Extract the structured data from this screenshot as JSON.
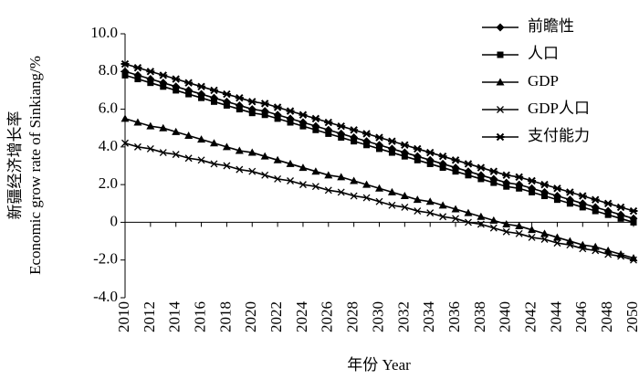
{
  "chart_data": {
    "type": "line",
    "ylabel": [
      "新疆经济增长率",
      "Economic grow rate of  Sinkiang/%"
    ],
    "xlabel": "年份 Year",
    "x": [
      2010,
      2011,
      2012,
      2013,
      2014,
      2015,
      2016,
      2017,
      2018,
      2019,
      2020,
      2021,
      2022,
      2023,
      2024,
      2025,
      2026,
      2027,
      2028,
      2029,
      2030,
      2031,
      2032,
      2033,
      2034,
      2035,
      2036,
      2037,
      2038,
      2039,
      2040,
      2041,
      2042,
      2043,
      2044,
      2045,
      2046,
      2047,
      2048,
      2049,
      2050
    ],
    "xlim": [
      2010,
      2050
    ],
    "xticks": [
      2010,
      2012,
      2014,
      2016,
      2018,
      2020,
      2022,
      2024,
      2026,
      2028,
      2030,
      2032,
      2034,
      2036,
      2038,
      2040,
      2042,
      2044,
      2046,
      2048,
      2050
    ],
    "ylim": [
      -4,
      10
    ],
    "yticks": [
      {
        "value": -4,
        "label": "-4.0"
      },
      {
        "value": -2,
        "label": "-2.0"
      },
      0,
      {
        "value": 2,
        "label": "2.0"
      },
      {
        "value": 4,
        "label": "4.0"
      },
      {
        "value": 6,
        "label": "6.0"
      },
      {
        "value": 8,
        "label": "8.0"
      },
      {
        "value": 10,
        "label": "10.0"
      }
    ],
    "legend": "top-right",
    "series": [
      {
        "name": "前瞻性",
        "color": "#000000",
        "marker": "diamond",
        "values": [
          8.0,
          7.8,
          7.6,
          7.4,
          7.2,
          7.0,
          6.8,
          6.6,
          6.4,
          6.2,
          6.0,
          5.9,
          5.7,
          5.5,
          5.3,
          5.1,
          4.9,
          4.7,
          4.5,
          4.3,
          4.1,
          3.9,
          3.7,
          3.5,
          3.3,
          3.1,
          2.9,
          2.7,
          2.5,
          2.3,
          2.1,
          2.0,
          1.8,
          1.6,
          1.4,
          1.2,
          1.0,
          0.8,
          0.6,
          0.4,
          0.2
        ]
      },
      {
        "name": "人口",
        "color": "#000000",
        "marker": "square",
        "values": [
          7.8,
          7.6,
          7.4,
          7.2,
          7.0,
          6.8,
          6.6,
          6.4,
          6.2,
          6.0,
          5.8,
          5.7,
          5.5,
          5.3,
          5.1,
          4.9,
          4.7,
          4.5,
          4.3,
          4.1,
          3.9,
          3.7,
          3.5,
          3.3,
          3.1,
          2.9,
          2.7,
          2.5,
          2.3,
          2.1,
          1.9,
          1.8,
          1.6,
          1.4,
          1.2,
          1.0,
          0.8,
          0.6,
          0.4,
          0.2,
          0.0
        ]
      },
      {
        "name": "GDP",
        "color": "#000000",
        "marker": "triangle",
        "values": [
          5.5,
          5.3,
          5.1,
          5.0,
          4.8,
          4.6,
          4.4,
          4.2,
          4.0,
          3.8,
          3.7,
          3.5,
          3.3,
          3.1,
          2.9,
          2.7,
          2.5,
          2.4,
          2.2,
          2.0,
          1.8,
          1.6,
          1.4,
          1.2,
          1.1,
          0.9,
          0.7,
          0.5,
          0.3,
          0.1,
          -0.1,
          -0.2,
          -0.4,
          -0.6,
          -0.8,
          -1.0,
          -1.2,
          -1.3,
          -1.5,
          -1.7,
          -1.9
        ]
      },
      {
        "name": "GDP人口",
        "color": "#000000",
        "marker": "x",
        "values": [
          4.2,
          4.0,
          3.9,
          3.7,
          3.6,
          3.4,
          3.3,
          3.1,
          3.0,
          2.8,
          2.7,
          2.5,
          2.3,
          2.2,
          2.0,
          1.9,
          1.7,
          1.6,
          1.4,
          1.3,
          1.1,
          0.9,
          0.8,
          0.6,
          0.5,
          0.3,
          0.2,
          0.0,
          -0.1,
          -0.3,
          -0.5,
          -0.6,
          -0.8,
          -0.9,
          -1.1,
          -1.2,
          -1.4,
          -1.5,
          -1.7,
          -1.8,
          -2.0
        ]
      },
      {
        "name": "支付能力",
        "color": "#000000",
        "marker": "asterisk",
        "values": [
          8.4,
          8.2,
          8.0,
          7.8,
          7.6,
          7.4,
          7.2,
          7.0,
          6.8,
          6.6,
          6.4,
          6.3,
          6.1,
          5.9,
          5.7,
          5.5,
          5.3,
          5.1,
          4.9,
          4.7,
          4.5,
          4.3,
          4.1,
          3.9,
          3.7,
          3.5,
          3.3,
          3.1,
          2.9,
          2.7,
          2.5,
          2.4,
          2.2,
          2.0,
          1.8,
          1.6,
          1.4,
          1.2,
          1.0,
          0.8,
          0.6
        ]
      }
    ]
  }
}
